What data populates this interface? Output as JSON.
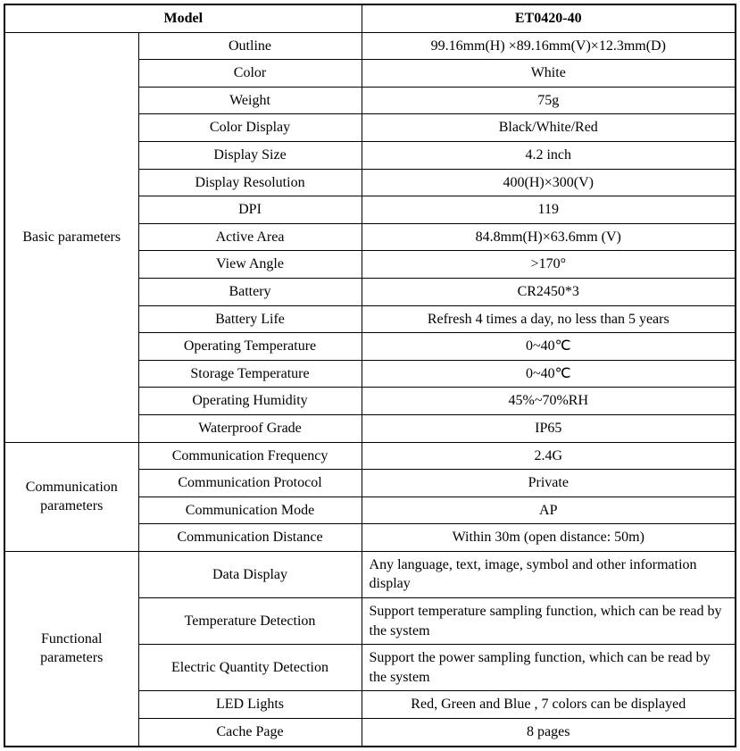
{
  "header": {
    "model_label": "Model",
    "model_value": "ET0420-40"
  },
  "sections": [
    {
      "category": "Basic parameters",
      "rows": [
        {
          "attr": "Outline",
          "value": "99.16mm(H) ×89.16mm(V)×12.3mm(D)",
          "align": "center"
        },
        {
          "attr": "Color",
          "value": "White",
          "align": "center"
        },
        {
          "attr": "Weight",
          "value": "75g",
          "align": "center"
        },
        {
          "attr": "Color Display",
          "value": "Black/White/Red",
          "align": "center"
        },
        {
          "attr": "Display Size",
          "value": "4.2 inch",
          "align": "center"
        },
        {
          "attr": "Display Resolution",
          "value": "400(H)×300(V)",
          "align": "center"
        },
        {
          "attr": "DPI",
          "value": "119",
          "align": "center"
        },
        {
          "attr": "Active Area",
          "value": "84.8mm(H)×63.6mm (V)",
          "align": "center"
        },
        {
          "attr": "View Angle",
          "value": ">170°",
          "align": "center"
        },
        {
          "attr": "Battery",
          "value": "CR2450*3",
          "align": "center"
        },
        {
          "attr": "Battery Life",
          "value": "Refresh 4 times a day, no less than 5 years",
          "align": "center"
        },
        {
          "attr": "Operating Temperature",
          "value": "0~40℃",
          "align": "center"
        },
        {
          "attr": "Storage Temperature",
          "value": "0~40℃",
          "align": "center"
        },
        {
          "attr": "Operating Humidity",
          "value": "45%~70%RH",
          "align": "center"
        },
        {
          "attr": "Waterproof Grade",
          "value": "IP65",
          "align": "center"
        }
      ]
    },
    {
      "category": "Communication parameters",
      "rows": [
        {
          "attr": "Communication Frequency",
          "value": "2.4G",
          "align": "center"
        },
        {
          "attr": "Communication Protocol",
          "value": "Private",
          "align": "center"
        },
        {
          "attr": "Communication Mode",
          "value": "AP",
          "align": "center"
        },
        {
          "attr": "Communication Distance",
          "value": "Within 30m (open distance: 50m)",
          "align": "center"
        }
      ]
    },
    {
      "category": "Functional parameters",
      "rows": [
        {
          "attr": "Data Display",
          "value": "Any language, text, image, symbol and other information display",
          "align": "left"
        },
        {
          "attr": "Temperature Detection",
          "value": "Support temperature sampling function, which can be read by the system",
          "align": "left"
        },
        {
          "attr": "Electric Quantity Detection",
          "value": "Support the power sampling function, which can be read by the system",
          "align": "left"
        },
        {
          "attr": "LED Lights",
          "value": "Red, Green and Blue , 7 colors can be displayed",
          "align": "center"
        },
        {
          "attr": "Cache Page",
          "value": "8 pages",
          "align": "center"
        }
      ]
    }
  ]
}
